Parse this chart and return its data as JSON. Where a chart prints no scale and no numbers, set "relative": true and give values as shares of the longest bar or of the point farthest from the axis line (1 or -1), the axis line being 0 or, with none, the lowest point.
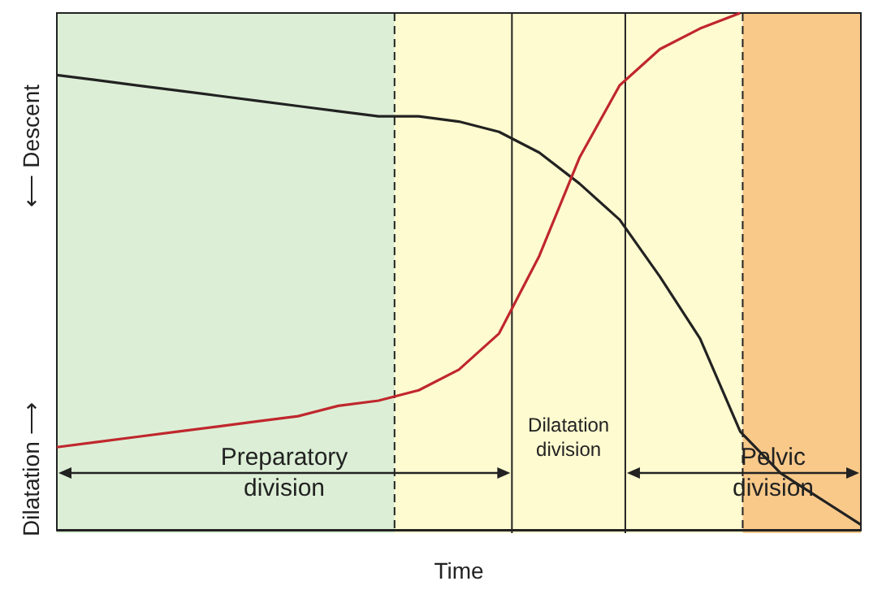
{
  "chart_data": {
    "type": "line",
    "relative": true,
    "xlabel": "Time",
    "ylabel": "Dilatation ⟶",
    "marker": "none",
    "line_style": "solid",
    "categories": [
      null,
      null,
      null,
      null,
      null,
      null,
      null,
      null,
      null,
      null,
      null,
      null,
      null,
      null,
      null,
      null,
      null,
      null,
      null,
      null,
      null
    ],
    "annotations": [
      "⟵ Descent",
      "Preparatory division",
      "Dilatation division",
      "Pelvic division"
    ],
    "series": [
      {
        "color": "#222222",
        "values": [
          0.88,
          0.87,
          0.86,
          0.85,
          0.84,
          0.83,
          0.82,
          0.81,
          0.8,
          0.8,
          0.79,
          0.77,
          0.73,
          0.67,
          0.6,
          0.49,
          0.37,
          0.19,
          0.11,
          0.06,
          0.01
        ]
      },
      {
        "color": "#c0272d",
        "values": [
          0.16,
          0.17,
          0.18,
          0.19,
          0.2,
          0.21,
          0.22,
          0.24,
          0.25,
          0.27,
          0.31,
          0.38,
          0.53,
          0.72,
          0.86,
          0.93,
          0.97,
          1.0,
          null,
          null,
          null
        ]
      }
    ]
  }
}
